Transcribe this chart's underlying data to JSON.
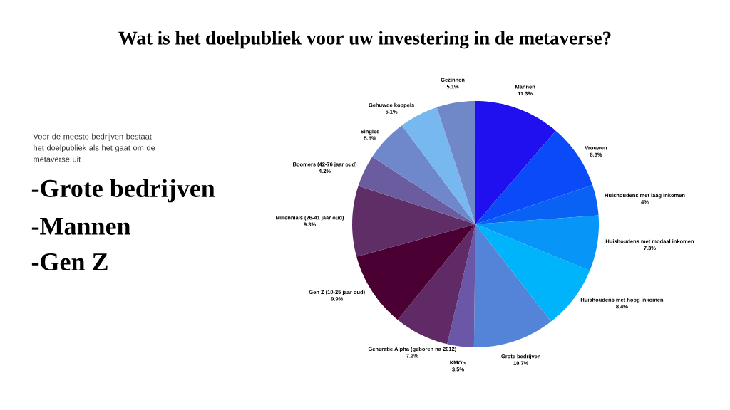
{
  "chart_data": {
    "type": "pie",
    "title": "Wat is het doelpubliek voor uw investering in de metaverse?",
    "categories": [
      "Mannen",
      "Vrouwen",
      "Huishoudens met laag inkomen",
      "Huishoudens met modaal inkomen",
      "Huishoudens met hoog inkomen",
      "Grote bedrijven",
      "KMO's",
      "Generatie Alpha (geboren na 2012)",
      "Gen Z (10-25 jaar oud)",
      "Millennials (26-41 jaar oud)",
      "Boomers (42-76 jaar oud)",
      "Singles",
      "Gehuwde koppels",
      "Gezinnen"
    ],
    "values": [
      11.3,
      8.6,
      4,
      7.3,
      8.4,
      10.7,
      3.5,
      7.2,
      9.9,
      9.3,
      4.2,
      5.6,
      5.1,
      5.1
    ],
    "value_labels": [
      "11.3%",
      "8.6%",
      "4%",
      "7.3%",
      "8.4%",
      "10.7%",
      "3.5%",
      "7.2%",
      "9.9%",
      "9.3%",
      "4.2%",
      "5.6%",
      "5.1%",
      "5.1%"
    ],
    "colors": [
      "#2010f0",
      "#0a4af8",
      "#0a62f5",
      "#0895f8",
      "#00b4fb",
      "#5484d8",
      "#6a57a8",
      "#5f2a66",
      "#4a0033",
      "#5f2e66",
      "#6b5ca0",
      "#6f88cc",
      "#78b8f0",
      "#7088c8"
    ],
    "annotations": [
      "Voor de meeste bedrijven bestaat het doelpubliek als het gaat om de metaverse uit",
      "-Grote bedrijven",
      "-Mannen",
      "-Gen Z"
    ]
  }
}
